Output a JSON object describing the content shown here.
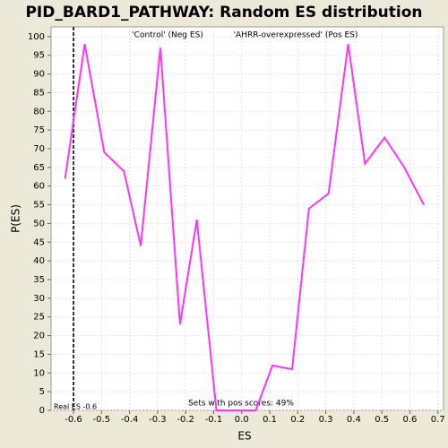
{
  "chart_data": {
    "type": "line",
    "title": "PID_BARD1_PATHWAY: Random ES distribution",
    "x_label": "ES",
    "y_label": "P(ES)",
    "legend": [
      "'Control' (Neg ES)",
      "'AHRR-overexpressed' (Pos ES)"
    ],
    "legend_colors": [
      "#3333cc",
      "#cc3333"
    ],
    "annotation": "Sets with pos scores: 49%",
    "real_es": -0.6,
    "real_es_label": "Real ES -0.6",
    "x": [
      -0.63,
      -0.56,
      -0.49,
      -0.42,
      -0.36,
      -0.29,
      -0.22,
      -0.16,
      -0.09,
      -0.02,
      0.05,
      0.11,
      0.18,
      0.24,
      0.31,
      0.38,
      0.44,
      0.51,
      0.58,
      0.65
    ],
    "series": [
      {
        "color": "#ff33ff",
        "values": [
          62,
          98,
          69,
          64,
          44,
          97,
          23,
          51,
          0,
          0,
          0,
          12,
          11,
          54,
          58,
          98,
          66,
          73,
          65,
          55
        ]
      }
    ],
    "xlim": [
      -0.68,
      0.72
    ],
    "ylim": [
      0,
      102.6
    ],
    "xticks": [
      -0.6,
      -0.5,
      -0.4,
      -0.3,
      -0.2,
      -0.1,
      {
        "value": 0,
        "label": "0.0"
      },
      0.1,
      0.2,
      0.3,
      0.4,
      0.5,
      0.6,
      0.7
    ],
    "yticks": [
      0,
      5,
      10,
      15,
      20,
      25,
      30,
      35,
      40,
      45,
      50,
      55,
      60,
      65,
      70,
      75,
      80,
      85,
      90,
      95,
      100
    ],
    "grid": true
  }
}
